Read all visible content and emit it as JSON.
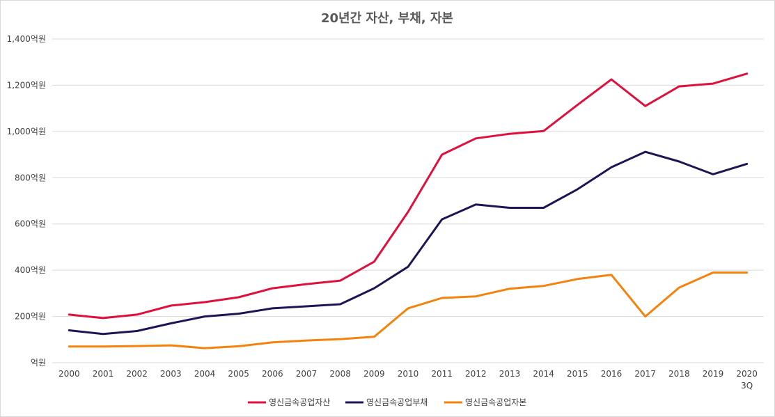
{
  "chart_data": {
    "type": "line",
    "title": "20년간 자산, 부채, 자본",
    "categories": [
      "2000",
      "2001",
      "2002",
      "2003",
      "2004",
      "2005",
      "2006",
      "2007",
      "2008",
      "2009",
      "2010",
      "2011",
      "2012",
      "2013",
      "2014",
      "2015",
      "2016",
      "2017",
      "2018",
      "2019",
      "2020\n3Q"
    ],
    "y_tick_labels": [
      "억원",
      "200억원",
      "400억원",
      "600억원",
      "800억원",
      "1,000억원",
      "1,200억원",
      "1,400억원"
    ],
    "ylim": [
      0,
      1400
    ],
    "grid": true,
    "legend_position": "bottom",
    "series": [
      {
        "name": "영신금속공업자산",
        "color": "#e0103c",
        "values": [
          208,
          193,
          208,
          247,
          262,
          283,
          322,
          340,
          355,
          437,
          652,
          900,
          970,
          990,
          1002,
          1115,
          1225,
          1110,
          1195,
          1207,
          1250
        ]
      },
      {
        "name": "영신금속공업부채",
        "color": "#1d1654",
        "values": [
          140,
          124,
          137,
          170,
          200,
          212,
          235,
          244,
          253,
          322,
          415,
          620,
          684,
          670,
          670,
          750,
          845,
          912,
          870,
          815,
          860
        ]
      },
      {
        "name": "영신금속공업자본",
        "color": "#f5820d",
        "values": [
          70,
          70,
          72,
          75,
          63,
          71,
          88,
          96,
          102,
          112,
          235,
          280,
          287,
          320,
          332,
          362,
          380,
          200,
          325,
          390,
          390
        ]
      }
    ]
  }
}
